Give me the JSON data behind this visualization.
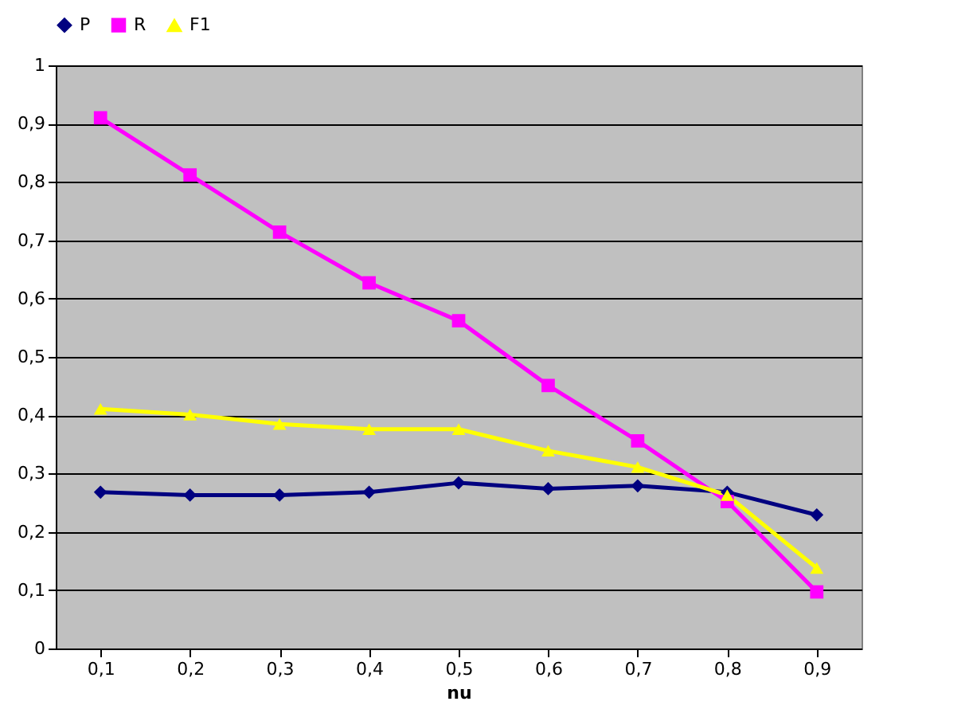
{
  "chart_data": {
    "type": "line",
    "xlabel": "nu",
    "categories": [
      "0,1",
      "0,2",
      "0,3",
      "0,4",
      "0,5",
      "0,6",
      "0,7",
      "0,8",
      "0,9"
    ],
    "series": [
      {
        "name": "P",
        "color": "#000080",
        "marker": "diamond",
        "values": [
          0.268,
          0.263,
          0.263,
          0.268,
          0.284,
          0.274,
          0.279,
          0.268,
          0.229
        ]
      },
      {
        "name": "R",
        "color": "#ff00ff",
        "marker": "square",
        "values": [
          0.91,
          0.812,
          0.714,
          0.627,
          0.562,
          0.451,
          0.356,
          0.252,
          0.097
        ]
      },
      {
        "name": "F1",
        "color": "#ffff00",
        "marker": "triangle",
        "values": [
          0.411,
          0.401,
          0.385,
          0.376,
          0.376,
          0.339,
          0.311,
          0.263,
          0.138
        ]
      }
    ],
    "ylim": [
      0,
      1
    ],
    "yticks": [
      0,
      {
        "value": 0.1,
        "label": "0,1"
      },
      {
        "value": 0.2,
        "label": "0,2"
      },
      {
        "value": 0.3,
        "label": "0,3"
      },
      {
        "value": 0.4,
        "label": "0,4"
      },
      {
        "value": 0.5,
        "label": "0,5"
      },
      {
        "value": 0.6,
        "label": "0,6"
      },
      {
        "value": 0.7,
        "label": "0,7"
      },
      {
        "value": 0.8,
        "label": "0,8"
      },
      {
        "value": 0.9,
        "label": "0,9"
      },
      1
    ],
    "grid": "y",
    "legend": "top",
    "line_style": "solid"
  }
}
